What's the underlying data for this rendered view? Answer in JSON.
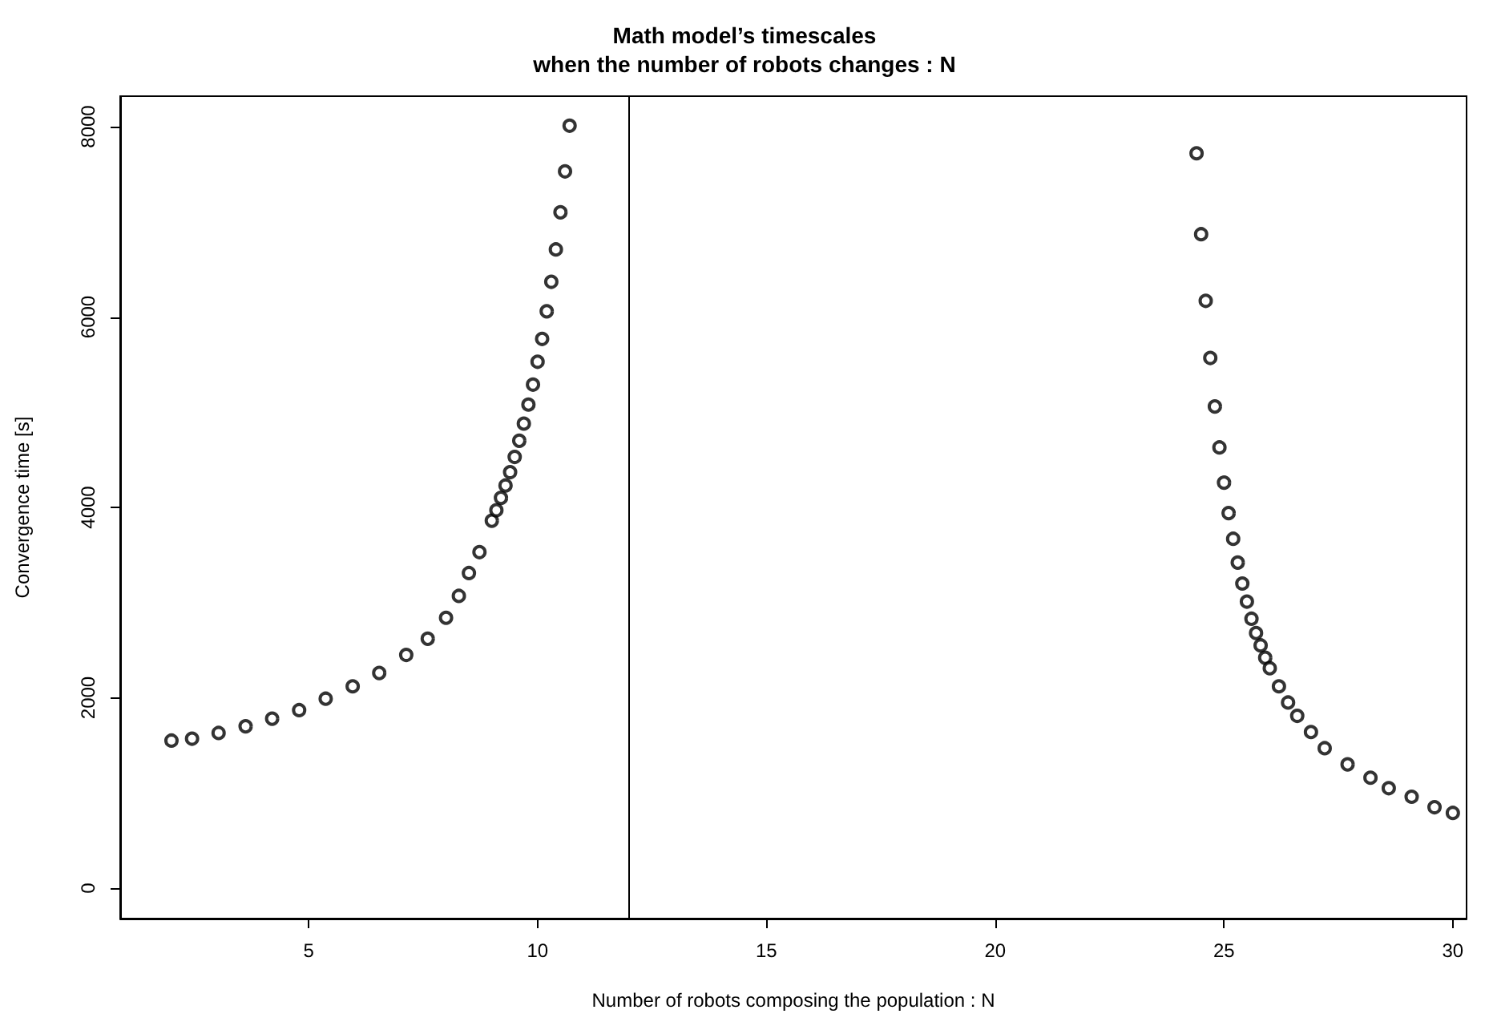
{
  "chart_data": {
    "type": "scatter",
    "title": "Math model’s timescales\nwhen the number of robots changes : N",
    "xlabel": "Number of robots composing the population : N",
    "ylabel": "Convergence time [s]",
    "xlim": [
      0.88,
      30.3
    ],
    "xticks": [
      5,
      10,
      15,
      20,
      25,
      30
    ],
    "ylim": [
      -320,
      8320
    ],
    "yticks": [
      0,
      2000,
      4000,
      6000,
      8000
    ],
    "grid": false,
    "marker": "circle",
    "ref_lines": [
      {
        "axis": "x",
        "value": 12,
        "color": "#000000"
      }
    ],
    "series": [
      {
        "color": "#000000",
        "x": [
          2.0,
          2.45,
          3.03,
          3.62,
          4.2,
          4.79,
          5.37,
          5.96,
          6.54,
          7.13,
          7.6,
          8.0,
          8.28,
          8.5,
          8.73,
          9.0,
          9.1,
          9.2,
          9.3,
          9.4,
          9.5,
          9.6,
          9.7,
          9.8,
          9.9,
          10.0,
          10.1,
          10.2,
          10.3,
          10.4,
          10.5,
          10.6,
          10.7
        ],
        "values": [
          1550,
          1570,
          1630,
          1700,
          1780,
          1870,
          1990,
          2120,
          2260,
          2450,
          2620,
          2840,
          3070,
          3310,
          3530,
          3860,
          3970,
          4100,
          4230,
          4370,
          4530,
          4700,
          4880,
          5080,
          5290,
          5530,
          5770,
          6060,
          6370,
          6710,
          7100,
          7530,
          8010
        ]
      },
      {
        "color": "#000000",
        "x": [
          24.4,
          24.5,
          24.6,
          24.7,
          24.8,
          24.9,
          25.0,
          25.1,
          25.2,
          25.3,
          25.4,
          25.5,
          25.6,
          25.7,
          25.8,
          25.9,
          26.0,
          26.2,
          26.4,
          26.6,
          26.9,
          27.2,
          27.7,
          28.2,
          28.6,
          29.1,
          29.6,
          30.0
        ],
        "values": [
          7720,
          6870,
          6170,
          5570,
          5060,
          4630,
          4260,
          3940,
          3670,
          3420,
          3200,
          3010,
          2830,
          2680,
          2550,
          2420,
          2310,
          2120,
          1950,
          1810,
          1640,
          1470,
          1300,
          1160,
          1050,
          960,
          850,
          790
        ]
      }
    ]
  }
}
